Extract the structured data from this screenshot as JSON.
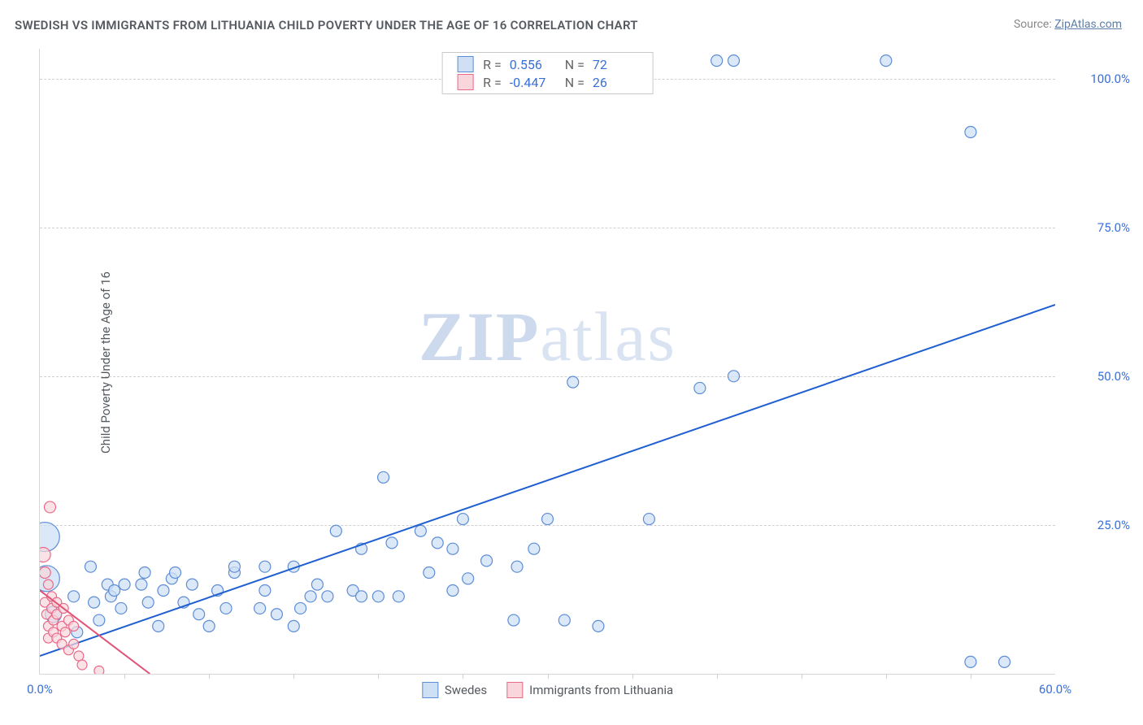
{
  "title": "SWEDISH VS IMMIGRANTS FROM LITHUANIA CHILD POVERTY UNDER THE AGE OF 16 CORRELATION CHART",
  "source_label": "Source: ",
  "source_link": "ZipAtlas.com",
  "y_axis_title": "Child Poverty Under the Age of 16",
  "watermark": {
    "left": "ZIP",
    "right": "atlas"
  },
  "chart": {
    "type": "scatter",
    "background_color": "#ffffff",
    "grid_color": "#d0d0d0",
    "axis_color": "#d6d6d6",
    "tick_label_color": "#3a6fd8",
    "xlim": [
      0,
      60
    ],
    "ylim": [
      0,
      105
    ],
    "x_ticks": [
      {
        "pos": 0,
        "label": "0.0%"
      },
      {
        "pos": 60,
        "label": "60.0%"
      }
    ],
    "x_minor_ticks": [
      5,
      10,
      15,
      20,
      25,
      30,
      35,
      40,
      45,
      50,
      55
    ],
    "y_ticks": [
      {
        "pos": 25,
        "label": "25.0%"
      },
      {
        "pos": 50,
        "label": "50.0%"
      },
      {
        "pos": 75,
        "label": "75.0%"
      },
      {
        "pos": 100,
        "label": "100.0%"
      }
    ],
    "series": [
      {
        "key": "swedes",
        "legend_label": "Swedes",
        "fill": "#cfe0f5",
        "stroke": "#5d8dd6",
        "fill_opacity": 0.75,
        "stroke_width": 1.2,
        "marker_r_default": 7,
        "trend": {
          "x1": 0,
          "y1": 3,
          "x2": 60,
          "y2": 62,
          "color": "#1f5fd0",
          "width": 2
        },
        "stats": {
          "r": "0.556",
          "n": "72"
        },
        "points": [
          {
            "x": 0.3,
            "y": 23,
            "r": 18
          },
          {
            "x": 0.4,
            "y": 16,
            "r": 16
          },
          {
            "x": 0.8,
            "y": 10,
            "r": 10
          },
          {
            "x": 2,
            "y": 13
          },
          {
            "x": 2.2,
            "y": 7
          },
          {
            "x": 3,
            "y": 18
          },
          {
            "x": 3.2,
            "y": 12
          },
          {
            "x": 3.5,
            "y": 9
          },
          {
            "x": 4,
            "y": 15
          },
          {
            "x": 4.2,
            "y": 13
          },
          {
            "x": 4.4,
            "y": 14
          },
          {
            "x": 4.8,
            "y": 11
          },
          {
            "x": 5,
            "y": 15
          },
          {
            "x": 6,
            "y": 15
          },
          {
            "x": 6.2,
            "y": 17
          },
          {
            "x": 6.4,
            "y": 12
          },
          {
            "x": 7,
            "y": 8
          },
          {
            "x": 7.3,
            "y": 14
          },
          {
            "x": 7.8,
            "y": 16
          },
          {
            "x": 8,
            "y": 17
          },
          {
            "x": 8.5,
            "y": 12
          },
          {
            "x": 9,
            "y": 15
          },
          {
            "x": 9.4,
            "y": 10
          },
          {
            "x": 10,
            "y": 8
          },
          {
            "x": 10.5,
            "y": 14
          },
          {
            "x": 11,
            "y": 11
          },
          {
            "x": 11.5,
            "y": 17
          },
          {
            "x": 11.5,
            "y": 18
          },
          {
            "x": 13,
            "y": 11
          },
          {
            "x": 13.3,
            "y": 14
          },
          {
            "x": 13.3,
            "y": 18
          },
          {
            "x": 14,
            "y": 10
          },
          {
            "x": 15,
            "y": 8
          },
          {
            "x": 15,
            "y": 18
          },
          {
            "x": 15.4,
            "y": 11
          },
          {
            "x": 16,
            "y": 13
          },
          {
            "x": 16.4,
            "y": 15
          },
          {
            "x": 17,
            "y": 13
          },
          {
            "x": 17.5,
            "y": 24
          },
          {
            "x": 18.5,
            "y": 14
          },
          {
            "x": 19,
            "y": 13
          },
          {
            "x": 19,
            "y": 21
          },
          {
            "x": 20,
            "y": 13
          },
          {
            "x": 20.3,
            "y": 33
          },
          {
            "x": 20.8,
            "y": 22
          },
          {
            "x": 21.2,
            "y": 13
          },
          {
            "x": 22.5,
            "y": 24
          },
          {
            "x": 23,
            "y": 17
          },
          {
            "x": 23.5,
            "y": 22
          },
          {
            "x": 24.4,
            "y": 14
          },
          {
            "x": 24.4,
            "y": 21
          },
          {
            "x": 25,
            "y": 26
          },
          {
            "x": 25.3,
            "y": 16
          },
          {
            "x": 26.4,
            "y": 19
          },
          {
            "x": 27,
            "y": 103
          },
          {
            "x": 28,
            "y": 9
          },
          {
            "x": 28.2,
            "y": 18
          },
          {
            "x": 29.2,
            "y": 21
          },
          {
            "x": 30,
            "y": 26
          },
          {
            "x": 31,
            "y": 9
          },
          {
            "x": 31.5,
            "y": 49
          },
          {
            "x": 33,
            "y": 8
          },
          {
            "x": 35.5,
            "y": 103
          },
          {
            "x": 36,
            "y": 26
          },
          {
            "x": 39,
            "y": 48
          },
          {
            "x": 40,
            "y": 103
          },
          {
            "x": 41,
            "y": 103
          },
          {
            "x": 41,
            "y": 50
          },
          {
            "x": 50,
            "y": 103
          },
          {
            "x": 55,
            "y": 91
          },
          {
            "x": 55,
            "y": 2
          },
          {
            "x": 57,
            "y": 2
          }
        ]
      },
      {
        "key": "lithuania",
        "legend_label": "Immigrants from Lithuania",
        "fill": "#f8d6dc",
        "stroke": "#e96a88",
        "fill_opacity": 0.7,
        "stroke_width": 1.2,
        "marker_r_default": 6,
        "trend": {
          "x1": 0,
          "y1": 14,
          "x2": 6.5,
          "y2": 0,
          "color": "#e25276",
          "width": 2
        },
        "stats": {
          "r": "-0.447",
          "n": "26"
        },
        "points": [
          {
            "x": 0.2,
            "y": 20,
            "r": 9
          },
          {
            "x": 0.3,
            "y": 17,
            "r": 7
          },
          {
            "x": 0.6,
            "y": 28,
            "r": 7
          },
          {
            "x": 0.3,
            "y": 12
          },
          {
            "x": 0.4,
            "y": 10
          },
          {
            "x": 0.5,
            "y": 15
          },
          {
            "x": 0.5,
            "y": 8
          },
          {
            "x": 0.5,
            "y": 6
          },
          {
            "x": 0.7,
            "y": 11
          },
          {
            "x": 0.7,
            "y": 13
          },
          {
            "x": 0.8,
            "y": 7
          },
          {
            "x": 0.8,
            "y": 9
          },
          {
            "x": 1,
            "y": 6
          },
          {
            "x": 1,
            "y": 10
          },
          {
            "x": 1,
            "y": 12
          },
          {
            "x": 1.3,
            "y": 5
          },
          {
            "x": 1.3,
            "y": 8
          },
          {
            "x": 1.4,
            "y": 11
          },
          {
            "x": 1.5,
            "y": 7
          },
          {
            "x": 1.7,
            "y": 4
          },
          {
            "x": 1.7,
            "y": 9
          },
          {
            "x": 2,
            "y": 5
          },
          {
            "x": 2,
            "y": 8
          },
          {
            "x": 2.3,
            "y": 3
          },
          {
            "x": 2.5,
            "y": 1.5
          },
          {
            "x": 3.5,
            "y": 0.5
          }
        ]
      }
    ],
    "legend_stats_labels": {
      "r": "R =",
      "n": "N ="
    }
  }
}
